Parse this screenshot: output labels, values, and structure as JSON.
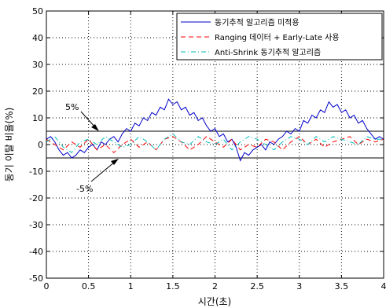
{
  "chart_data": {
    "type": "line",
    "xlabel": "시간(초)",
    "ylabel": "동기 이탈 비율(%)",
    "xlim": [
      0,
      4
    ],
    "ylim": [
      -50,
      50
    ],
    "xticks": [
      0,
      0.5,
      1,
      1.5,
      2,
      2.5,
      3,
      3.5,
      4
    ],
    "yticks": [
      -50,
      -40,
      -30,
      -20,
      -10,
      0,
      10,
      20,
      30,
      40,
      50
    ],
    "grid": true,
    "legend_position": "top-right",
    "series": [
      {
        "name": "동기추적 알고리즘 미적용",
        "color": "#0000cc",
        "style": "solid",
        "x": [
          0,
          0.05,
          0.1,
          0.15,
          0.2,
          0.25,
          0.3,
          0.35,
          0.4,
          0.45,
          0.5,
          0.55,
          0.6,
          0.65,
          0.7,
          0.75,
          0.8,
          0.85,
          0.9,
          0.95,
          1.0,
          1.05,
          1.1,
          1.15,
          1.2,
          1.25,
          1.3,
          1.35,
          1.4,
          1.45,
          1.5,
          1.55,
          1.6,
          1.65,
          1.7,
          1.75,
          1.8,
          1.85,
          1.9,
          1.95,
          2.0,
          2.05,
          2.1,
          2.15,
          2.2,
          2.25,
          2.3,
          2.35,
          2.4,
          2.45,
          2.5,
          2.55,
          2.6,
          2.65,
          2.7,
          2.75,
          2.8,
          2.85,
          2.9,
          2.95,
          3.0,
          3.05,
          3.1,
          3.15,
          3.2,
          3.25,
          3.3,
          3.35,
          3.4,
          3.45,
          3.5,
          3.55,
          3.6,
          3.65,
          3.7,
          3.75,
          3.8,
          3.85,
          3.9,
          3.95,
          4.0
        ],
        "y": [
          2,
          3,
          1,
          -2,
          -4,
          -3,
          -5,
          -4,
          -2,
          -3,
          -1,
          0,
          -2,
          1,
          0,
          2,
          3,
          1,
          4,
          6,
          5,
          8,
          7,
          10,
          9,
          12,
          11,
          14,
          13,
          17,
          15,
          16,
          13,
          14,
          11,
          12,
          9,
          10,
          7,
          5,
          6,
          3,
          4,
          1,
          2,
          -1,
          -6,
          -3,
          -4,
          -2,
          -1,
          0,
          -2,
          1,
          0,
          2,
          3,
          5,
          4,
          6,
          5,
          9,
          8,
          11,
          10,
          13,
          12,
          16,
          14,
          15,
          12,
          13,
          10,
          11,
          8,
          9,
          6,
          4,
          2,
          3,
          2
        ]
      },
      {
        "name": "Ranging 데이터 + Early-Late 사용",
        "color": "#ff0000",
        "style": "dashed",
        "x": [
          0,
          0.1,
          0.2,
          0.3,
          0.4,
          0.5,
          0.6,
          0.7,
          0.8,
          0.9,
          1.0,
          1.1,
          1.2,
          1.3,
          1.4,
          1.5,
          1.6,
          1.7,
          1.8,
          1.9,
          2.0,
          2.1,
          2.2,
          2.3,
          2.4,
          2.5,
          2.6,
          2.7,
          2.8,
          2.9,
          3.0,
          3.1,
          3.2,
          3.3,
          3.4,
          3.5,
          3.6,
          3.7,
          3.8,
          3.9,
          4.0
        ],
        "y": [
          2,
          0,
          -2,
          1,
          -1,
          2,
          -2,
          0,
          -3,
          0,
          2,
          -1,
          1,
          -2,
          2,
          3,
          1,
          -2,
          0,
          3,
          1,
          -1,
          2,
          -2,
          0,
          -1,
          2,
          1,
          -2,
          1,
          3,
          0,
          2,
          -1,
          1,
          2,
          3,
          0,
          2,
          1,
          2
        ]
      },
      {
        "name": "Anti-Shrink 동기추적 알고리즘",
        "color": "#00bbbb",
        "style": "dashdot",
        "x": [
          0,
          0.1,
          0.2,
          0.3,
          0.4,
          0.5,
          0.6,
          0.7,
          0.8,
          0.9,
          1.0,
          1.1,
          1.2,
          1.3,
          1.4,
          1.5,
          1.6,
          1.7,
          1.8,
          1.9,
          2.0,
          2.1,
          2.2,
          2.3,
          2.4,
          2.5,
          2.6,
          2.7,
          2.8,
          2.9,
          3.0,
          3.1,
          3.2,
          3.3,
          3.4,
          3.5,
          3.6,
          3.7,
          3.8,
          3.9,
          4.0
        ],
        "y": [
          1,
          3,
          -1,
          -3,
          1,
          2,
          0,
          3,
          1,
          -1,
          0,
          3,
          1,
          -2,
          2,
          4,
          1,
          0,
          3,
          1,
          0,
          2,
          -2,
          1,
          3,
          2,
          0,
          -2,
          1,
          3,
          2,
          0,
          3,
          1,
          3,
          2,
          1,
          0,
          3,
          2,
          2
        ]
      }
    ],
    "reference_lines": [
      {
        "label": "5%",
        "y": 5
      },
      {
        "label": "-5%",
        "y": -5
      }
    ]
  }
}
